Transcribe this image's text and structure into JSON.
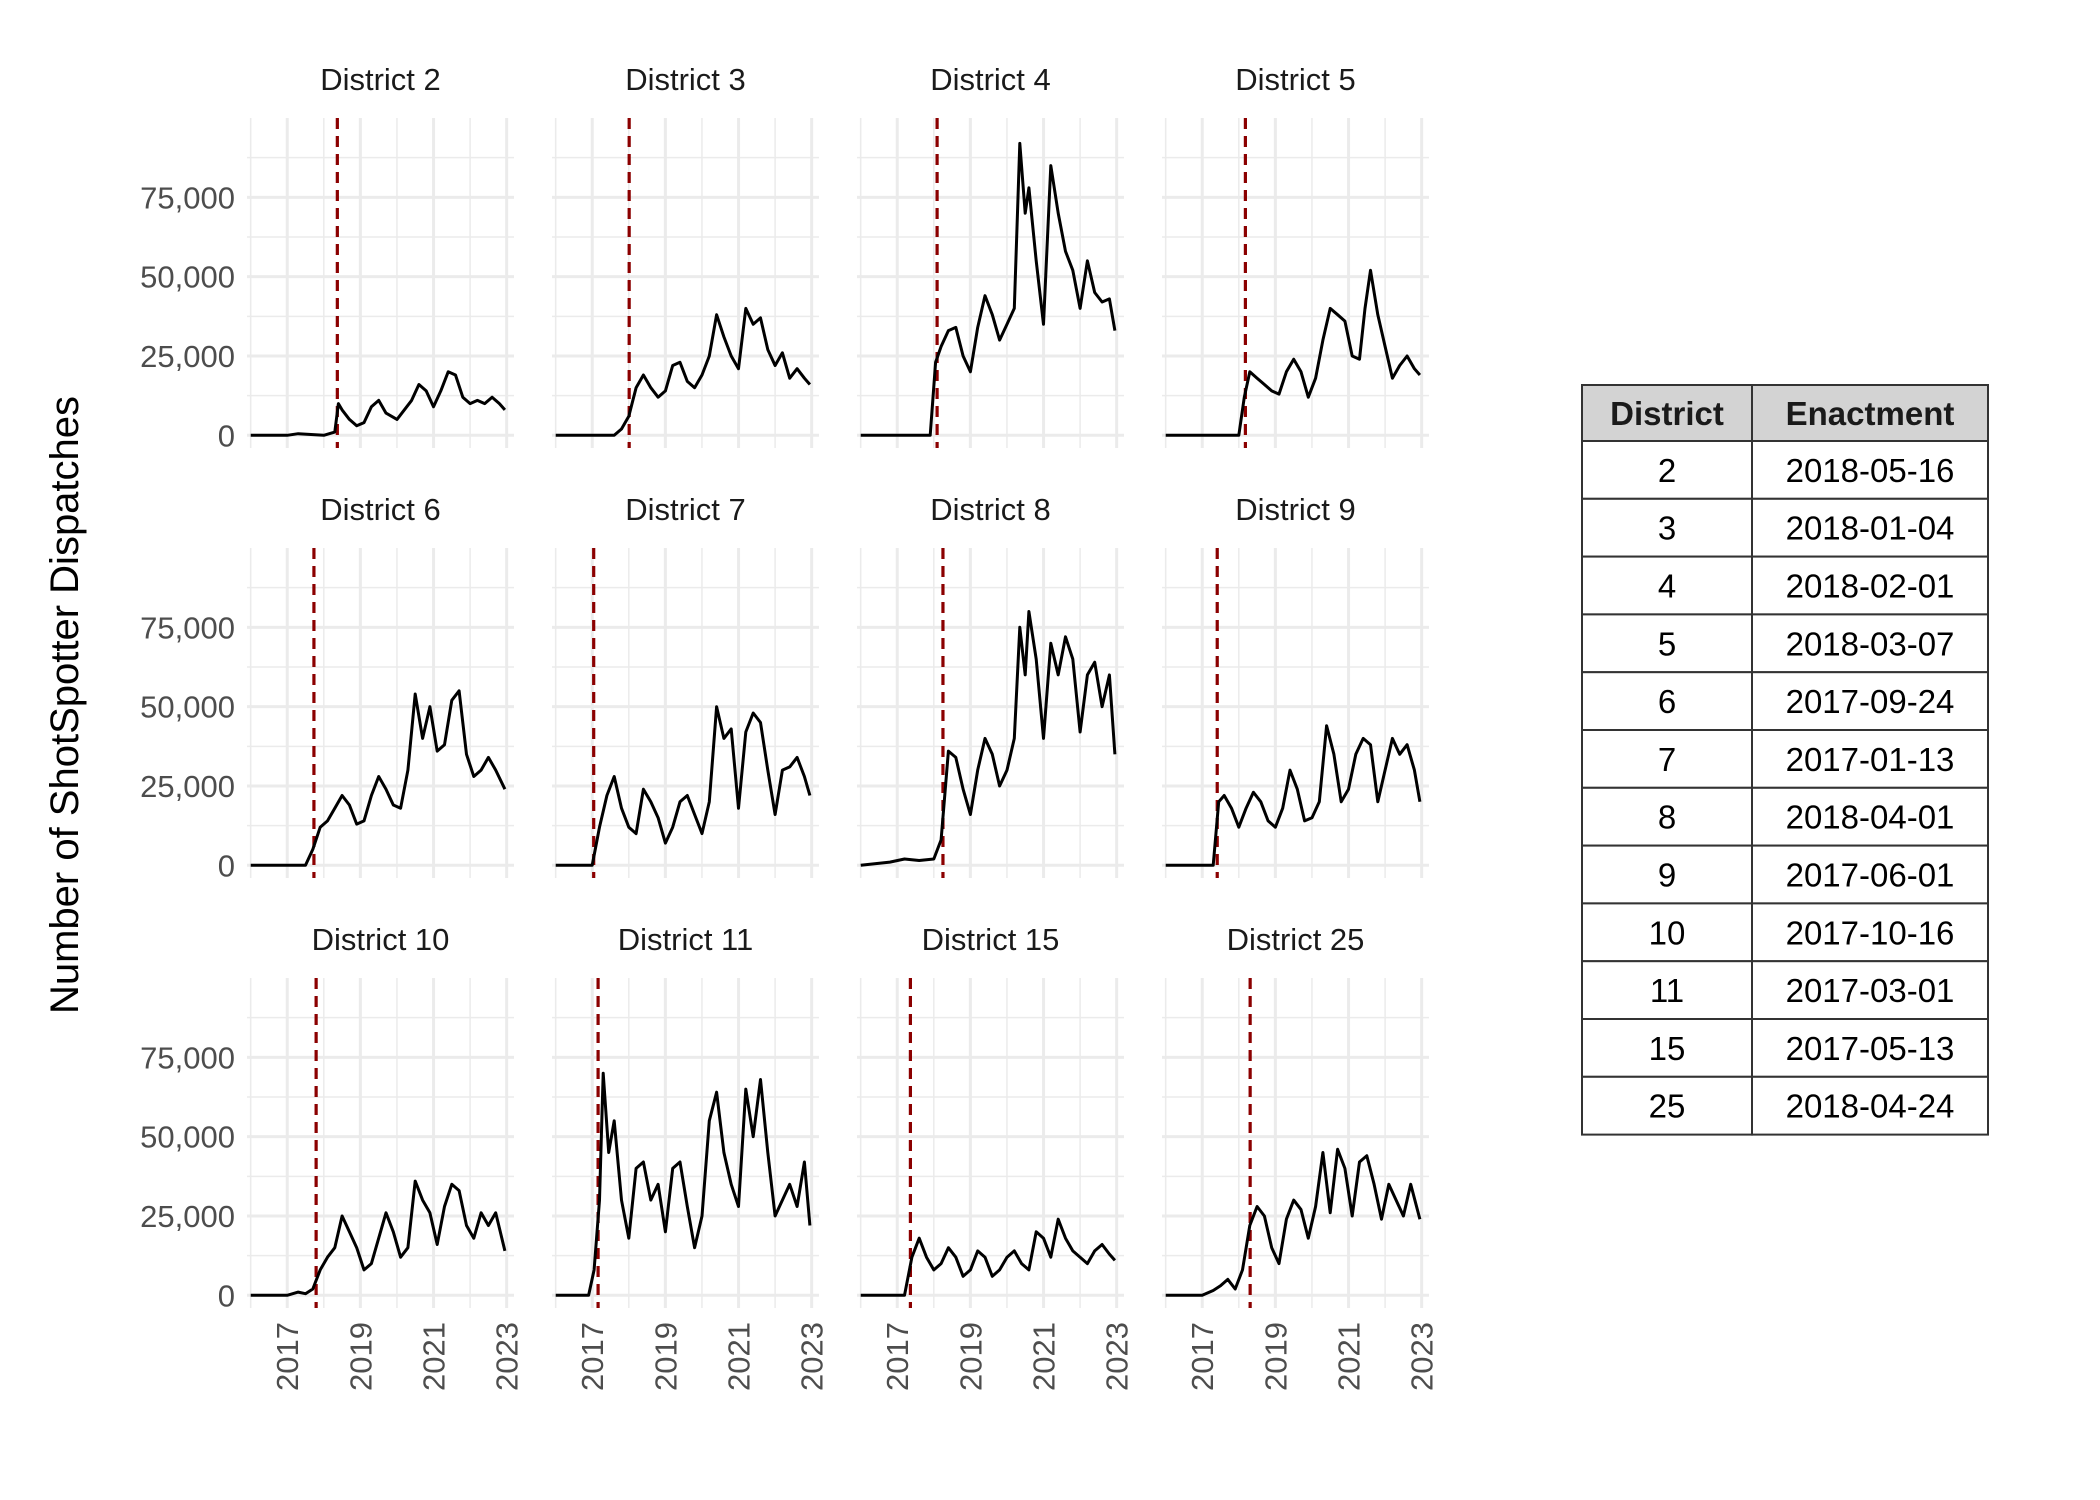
{
  "chart_data": {
    "type": "line",
    "title": "",
    "ylabel": "Number of ShotSpotter Dispatches",
    "xlabel": "",
    "xlim": [
      2015.9,
      2023.2
    ],
    "ylim": [
      -4000,
      100000
    ],
    "x_ticks": [
      "2017",
      "2019",
      "2021",
      "2023"
    ],
    "y_ticks": [
      "0",
      "25,000",
      "50,000",
      "75,000"
    ],
    "grid": true,
    "colors": {
      "line": "#000000",
      "enactment_line": "#8b0000",
      "grid": "#ebebeb"
    },
    "facets": [
      {
        "label": "District 2",
        "enactment": 2018.37,
        "x": [
          2016.0,
          2017.0,
          2017.3,
          2018.0,
          2018.3,
          2018.4,
          2018.5,
          2018.7,
          2018.9,
          2019.1,
          2019.3,
          2019.5,
          2019.7,
          2020.0,
          2020.2,
          2020.4,
          2020.6,
          2020.8,
          2021.0,
          2021.2,
          2021.4,
          2021.6,
          2021.8,
          2022.0,
          2022.2,
          2022.4,
          2022.6,
          2022.8,
          2022.95
        ],
        "y": [
          0,
          0,
          500,
          0,
          1000,
          10000,
          8000,
          5000,
          3000,
          4000,
          9000,
          11000,
          7000,
          5000,
          8000,
          11000,
          16000,
          14000,
          9000,
          14000,
          20000,
          19000,
          12000,
          10000,
          11000,
          10000,
          12000,
          10000,
          8000
        ]
      },
      {
        "label": "District 3",
        "enactment": 2018.01,
        "x": [
          2016.0,
          2017.6,
          2017.8,
          2018.0,
          2018.2,
          2018.4,
          2018.6,
          2018.8,
          2019.0,
          2019.2,
          2019.4,
          2019.6,
          2019.8,
          2020.0,
          2020.2,
          2020.4,
          2020.6,
          2020.8,
          2021.0,
          2021.2,
          2021.4,
          2021.6,
          2021.8,
          2022.0,
          2022.2,
          2022.4,
          2022.6,
          2022.8,
          2022.95
        ],
        "y": [
          0,
          0,
          2000,
          6000,
          15000,
          19000,
          15000,
          12000,
          14000,
          22000,
          23000,
          17000,
          15000,
          19000,
          25000,
          38000,
          31000,
          25000,
          21000,
          40000,
          35000,
          37000,
          27000,
          22000,
          26000,
          18000,
          21000,
          18000,
          16000
        ]
      },
      {
        "label": "District 4",
        "enactment": 2018.09,
        "x": [
          2016.0,
          2017.9,
          2018.05,
          2018.2,
          2018.4,
          2018.6,
          2018.8,
          2019.0,
          2019.2,
          2019.4,
          2019.6,
          2019.8,
          2020.0,
          2020.2,
          2020.35,
          2020.5,
          2020.6,
          2020.8,
          2021.0,
          2021.2,
          2021.4,
          2021.6,
          2021.8,
          2022.0,
          2022.2,
          2022.4,
          2022.6,
          2022.8,
          2022.95
        ],
        "y": [
          0,
          0,
          23000,
          28000,
          33000,
          34000,
          25000,
          20000,
          34000,
          44000,
          38000,
          30000,
          35000,
          40000,
          92000,
          70000,
          78000,
          55000,
          35000,
          85000,
          70000,
          58000,
          52000,
          40000,
          55000,
          45000,
          42000,
          43000,
          33000
        ]
      },
      {
        "label": "District 5",
        "enactment": 2018.18,
        "x": [
          2016.0,
          2018.0,
          2018.15,
          2018.3,
          2018.5,
          2018.7,
          2018.9,
          2019.1,
          2019.3,
          2019.5,
          2019.7,
          2019.9,
          2020.1,
          2020.3,
          2020.5,
          2020.7,
          2020.9,
          2021.1,
          2021.3,
          2021.45,
          2021.6,
          2021.8,
          2022.0,
          2022.2,
          2022.4,
          2022.6,
          2022.8,
          2022.95
        ],
        "y": [
          0,
          0,
          12000,
          20000,
          18000,
          16000,
          14000,
          13000,
          20000,
          24000,
          20000,
          12000,
          18000,
          30000,
          40000,
          38000,
          36000,
          25000,
          24000,
          40000,
          52000,
          38000,
          28000,
          18000,
          22000,
          25000,
          21000,
          19000
        ]
      },
      {
        "label": "District 6",
        "enactment": 2017.73,
        "x": [
          2016.0,
          2017.5,
          2017.7,
          2017.9,
          2018.1,
          2018.3,
          2018.5,
          2018.7,
          2018.9,
          2019.1,
          2019.3,
          2019.5,
          2019.7,
          2019.9,
          2020.1,
          2020.3,
          2020.5,
          2020.7,
          2020.9,
          2021.1,
          2021.3,
          2021.5,
          2021.7,
          2021.9,
          2022.1,
          2022.3,
          2022.5,
          2022.7,
          2022.95
        ],
        "y": [
          0,
          0,
          5000,
          12000,
          14000,
          18000,
          22000,
          19000,
          13000,
          14000,
          22000,
          28000,
          24000,
          19000,
          18000,
          30000,
          54000,
          40000,
          50000,
          36000,
          38000,
          52000,
          55000,
          35000,
          28000,
          30000,
          34000,
          30000,
          24000
        ]
      },
      {
        "label": "District 7",
        "enactment": 2017.04,
        "x": [
          2016.0,
          2017.0,
          2017.2,
          2017.4,
          2017.6,
          2017.8,
          2018.0,
          2018.2,
          2018.4,
          2018.6,
          2018.8,
          2019.0,
          2019.2,
          2019.4,
          2019.6,
          2019.8,
          2020.0,
          2020.2,
          2020.4,
          2020.6,
          2020.8,
          2021.0,
          2021.2,
          2021.4,
          2021.6,
          2021.8,
          2022.0,
          2022.2,
          2022.4,
          2022.6,
          2022.8,
          2022.95
        ],
        "y": [
          0,
          0,
          12000,
          22000,
          28000,
          18000,
          12000,
          10000,
          24000,
          20000,
          15000,
          7000,
          12000,
          20000,
          22000,
          16000,
          10000,
          20000,
          50000,
          40000,
          43000,
          18000,
          42000,
          48000,
          45000,
          30000,
          16000,
          30000,
          31000,
          34000,
          28000,
          22000
        ]
      },
      {
        "label": "District 8",
        "enactment": 2018.25,
        "x": [
          2016.0,
          2016.8,
          2017.2,
          2017.6,
          2018.0,
          2018.2,
          2018.4,
          2018.6,
          2018.8,
          2019.0,
          2019.2,
          2019.4,
          2019.6,
          2019.8,
          2020.0,
          2020.2,
          2020.35,
          2020.5,
          2020.6,
          2020.8,
          2021.0,
          2021.2,
          2021.4,
          2021.6,
          2021.8,
          2022.0,
          2022.2,
          2022.4,
          2022.6,
          2022.8,
          2022.95
        ],
        "y": [
          0,
          1000,
          2000,
          1500,
          2000,
          8000,
          36000,
          34000,
          24000,
          16000,
          30000,
          40000,
          35000,
          25000,
          30000,
          40000,
          75000,
          60000,
          80000,
          65000,
          40000,
          70000,
          60000,
          72000,
          65000,
          42000,
          60000,
          64000,
          50000,
          60000,
          35000
        ]
      },
      {
        "label": "District 9",
        "enactment": 2017.41,
        "x": [
          2016.0,
          2017.3,
          2017.45,
          2017.6,
          2017.8,
          2018.0,
          2018.2,
          2018.4,
          2018.6,
          2018.8,
          2019.0,
          2019.2,
          2019.4,
          2019.6,
          2019.8,
          2020.0,
          2020.2,
          2020.4,
          2020.6,
          2020.8,
          2021.0,
          2021.2,
          2021.4,
          2021.6,
          2021.8,
          2022.0,
          2022.2,
          2022.4,
          2022.6,
          2022.8,
          2022.95
        ],
        "y": [
          0,
          0,
          20000,
          22000,
          18000,
          12000,
          18000,
          23000,
          20000,
          14000,
          12000,
          18000,
          30000,
          24000,
          14000,
          15000,
          20000,
          44000,
          35000,
          20000,
          24000,
          35000,
          40000,
          38000,
          20000,
          30000,
          40000,
          35000,
          38000,
          30000,
          20000
        ]
      },
      {
        "label": "District 10",
        "enactment": 2017.79,
        "x": [
          2016.0,
          2017.0,
          2017.3,
          2017.5,
          2017.7,
          2017.9,
          2018.1,
          2018.3,
          2018.5,
          2018.7,
          2018.9,
          2019.1,
          2019.3,
          2019.5,
          2019.7,
          2019.9,
          2020.1,
          2020.3,
          2020.5,
          2020.7,
          2020.9,
          2021.1,
          2021.3,
          2021.5,
          2021.7,
          2021.9,
          2022.1,
          2022.3,
          2022.5,
          2022.7,
          2022.95
        ],
        "y": [
          0,
          0,
          1000,
          500,
          2000,
          8000,
          12000,
          15000,
          25000,
          20000,
          15000,
          8000,
          10000,
          18000,
          26000,
          20000,
          12000,
          15000,
          36000,
          30000,
          26000,
          16000,
          28000,
          35000,
          33000,
          22000,
          18000,
          26000,
          22000,
          26000,
          14000
        ]
      },
      {
        "label": "District 11",
        "enactment": 2017.16,
        "x": [
          2016.0,
          2016.9,
          2017.05,
          2017.2,
          2017.3,
          2017.45,
          2017.6,
          2017.8,
          2018.0,
          2018.2,
          2018.4,
          2018.6,
          2018.8,
          2019.0,
          2019.2,
          2019.4,
          2019.6,
          2019.8,
          2020.0,
          2020.2,
          2020.4,
          2020.6,
          2020.8,
          2021.0,
          2021.2,
          2021.4,
          2021.6,
          2021.8,
          2022.0,
          2022.2,
          2022.4,
          2022.6,
          2022.8,
          2022.95
        ],
        "y": [
          0,
          0,
          8000,
          30000,
          70000,
          45000,
          55000,
          30000,
          18000,
          40000,
          42000,
          30000,
          35000,
          20000,
          40000,
          42000,
          28000,
          15000,
          25000,
          55000,
          64000,
          45000,
          35000,
          28000,
          65000,
          50000,
          68000,
          45000,
          25000,
          30000,
          35000,
          28000,
          42000,
          22000
        ]
      },
      {
        "label": "District 15",
        "enactment": 2017.36,
        "x": [
          2016.0,
          2017.2,
          2017.4,
          2017.6,
          2017.8,
          2018.0,
          2018.2,
          2018.4,
          2018.6,
          2018.8,
          2019.0,
          2019.2,
          2019.4,
          2019.6,
          2019.8,
          2020.0,
          2020.2,
          2020.4,
          2020.6,
          2020.8,
          2021.0,
          2021.2,
          2021.4,
          2021.6,
          2021.8,
          2022.0,
          2022.2,
          2022.4,
          2022.6,
          2022.8,
          2022.95
        ],
        "y": [
          0,
          0,
          12000,
          18000,
          12000,
          8000,
          10000,
          15000,
          12000,
          6000,
          8000,
          14000,
          12000,
          6000,
          8000,
          12000,
          14000,
          10000,
          8000,
          20000,
          18000,
          12000,
          24000,
          18000,
          14000,
          12000,
          10000,
          14000,
          16000,
          13000,
          11000
        ]
      },
      {
        "label": "District 25",
        "enactment": 2018.31,
        "x": [
          2016.0,
          2017.0,
          2017.3,
          2017.5,
          2017.7,
          2017.9,
          2018.1,
          2018.3,
          2018.5,
          2018.7,
          2018.9,
          2019.1,
          2019.3,
          2019.5,
          2019.7,
          2019.9,
          2020.1,
          2020.3,
          2020.5,
          2020.7,
          2020.9,
          2021.1,
          2021.3,
          2021.5,
          2021.7,
          2021.9,
          2022.1,
          2022.3,
          2022.5,
          2022.7,
          2022.95
        ],
        "y": [
          0,
          0,
          1500,
          3000,
          5000,
          2000,
          8000,
          22000,
          28000,
          25000,
          15000,
          10000,
          24000,
          30000,
          27000,
          18000,
          28000,
          45000,
          26000,
          46000,
          40000,
          25000,
          42000,
          44000,
          35000,
          24000,
          35000,
          30000,
          25000,
          35000,
          24000
        ]
      }
    ],
    "table": {
      "headers": [
        "District",
        "Enactment"
      ],
      "rows": [
        [
          "2",
          "2018-05-16"
        ],
        [
          "3",
          "2018-01-04"
        ],
        [
          "4",
          "2018-02-01"
        ],
        [
          "5",
          "2018-03-07"
        ],
        [
          "6",
          "2017-09-24"
        ],
        [
          "7",
          "2017-01-13"
        ],
        [
          "8",
          "2018-04-01"
        ],
        [
          "9",
          "2017-06-01"
        ],
        [
          "10",
          "2017-10-16"
        ],
        [
          "11",
          "2017-03-01"
        ],
        [
          "15",
          "2017-05-13"
        ],
        [
          "25",
          "2018-04-24"
        ]
      ]
    }
  }
}
